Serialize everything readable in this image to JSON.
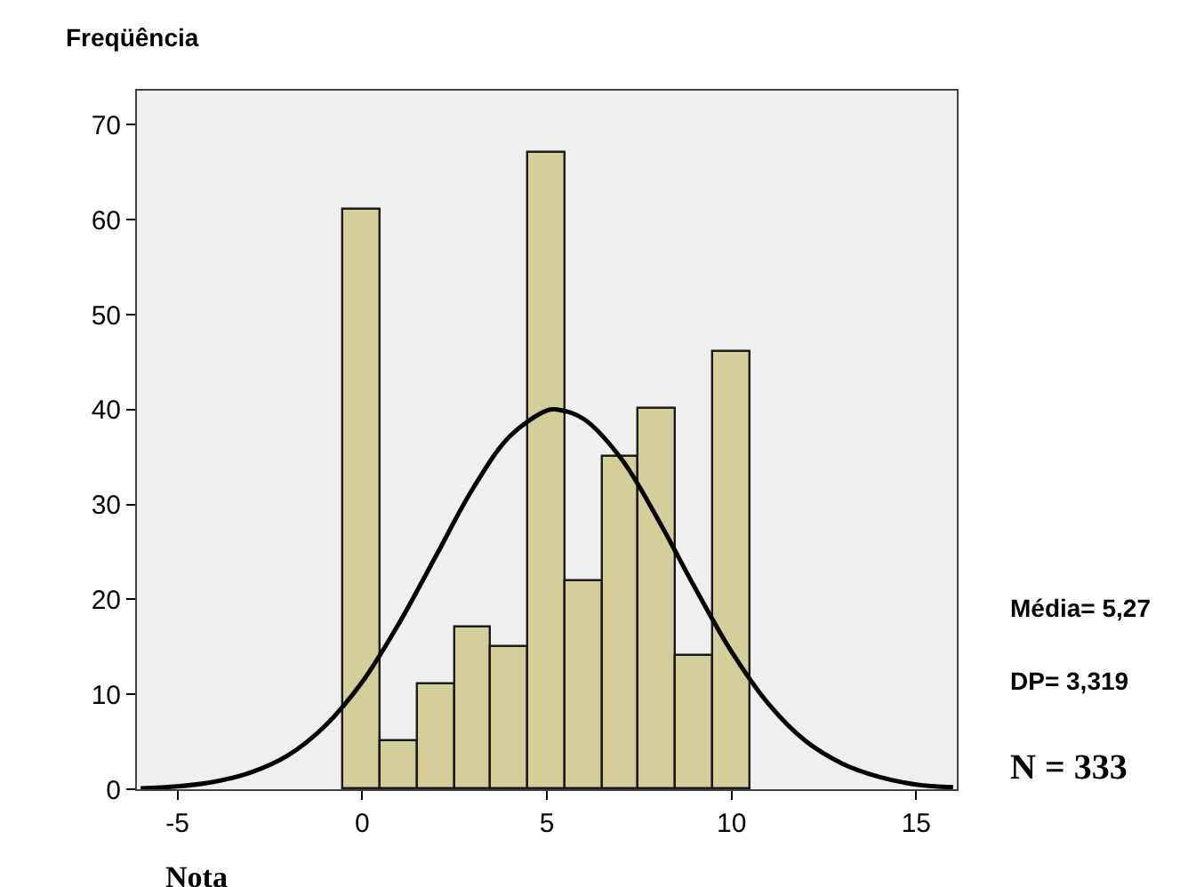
{
  "chart_data": {
    "type": "histogram",
    "ylabel": "Freqüência",
    "xlabel": "Nota",
    "annotations": [
      "Média= 5,27",
      "DP= 3,319",
      "N = 333"
    ],
    "series": [
      {
        "color": "#d4cf9a",
        "bins": [
          -0.5,
          0.5,
          1.5,
          2.5,
          3.5,
          4.5,
          5.5,
          6.5,
          7.5,
          8.5,
          9.5,
          10.5
        ],
        "values": [
          61,
          5,
          11,
          17,
          15,
          67,
          22,
          35,
          40,
          14,
          46
        ]
      },
      {
        "type": "line",
        "color": "#000000",
        "x": [
          -6,
          -5,
          -4,
          -3,
          -2,
          -1,
          0,
          1,
          2,
          3,
          4,
          5,
          5.27,
          6,
          7,
          8,
          9,
          10,
          11,
          12,
          13,
          14,
          15,
          16
        ],
        "values": [
          0.1,
          0.3,
          0.8,
          1.8,
          3.6,
          6.7,
          11.3,
          17.5,
          24.6,
          31.7,
          37.2,
          39.9,
          40,
          39.0,
          34.9,
          28.5,
          21.3,
          14.5,
          9.0,
          5.1,
          2.7,
          1.3,
          0.5,
          0.2
        ]
      }
    ],
    "xlim": [
      -6.1,
      16.1
    ],
    "ylim": [
      0,
      73.6
    ],
    "xticks": [
      -5,
      0,
      5,
      10,
      15
    ],
    "yticks": [
      0,
      10,
      20,
      30,
      40,
      50,
      60,
      70
    ],
    "grid": false
  }
}
